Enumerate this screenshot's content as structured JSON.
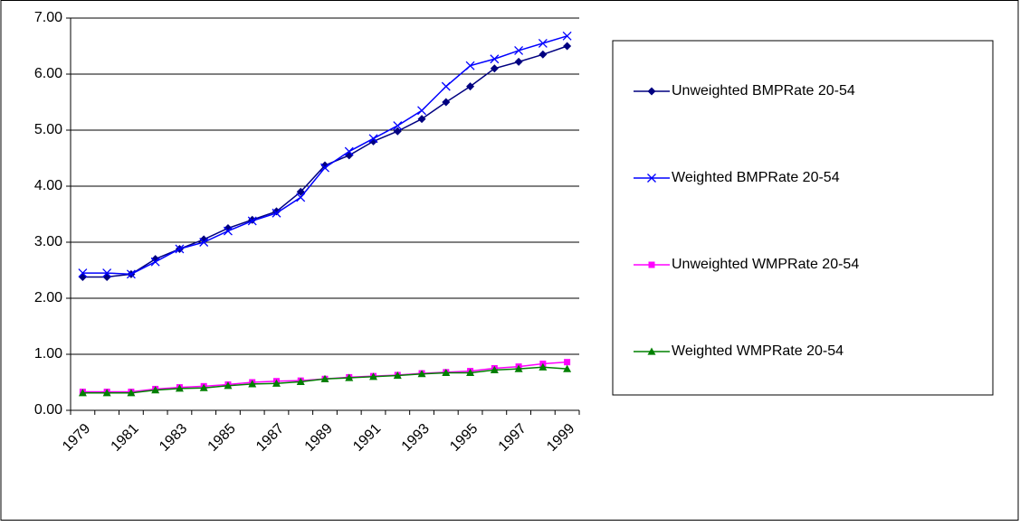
{
  "chart_data": {
    "type": "line",
    "categories": [
      "1979",
      null,
      "1981",
      null,
      "1983",
      null,
      "1985",
      null,
      "1987",
      null,
      "1989",
      null,
      "1991",
      null,
      "1993",
      null,
      "1995",
      null,
      "1997",
      null,
      "1999"
    ],
    "series": [
      {
        "name": "Unweighted BMPRate 20-54",
        "color": "#000080",
        "marker": "diamond",
        "values": [
          2.38,
          2.38,
          2.43,
          2.7,
          2.88,
          3.05,
          3.25,
          3.4,
          3.55,
          3.9,
          4.37,
          4.55,
          4.8,
          4.98,
          5.2,
          5.5,
          5.78,
          6.1,
          6.22,
          6.35,
          6.5
        ]
      },
      {
        "name": "Weighted BMPRate 20-54",
        "color": "#0000ff",
        "marker": "cross",
        "values": [
          2.45,
          2.45,
          2.43,
          2.65,
          2.88,
          3.0,
          3.2,
          3.38,
          3.52,
          3.8,
          4.33,
          4.62,
          4.85,
          5.08,
          5.35,
          5.78,
          6.15,
          6.27,
          6.42,
          6.55,
          6.68
        ]
      },
      {
        "name": "Unweighted WMPRate 20-54",
        "color": "#ff00ff",
        "marker": "square",
        "values": [
          0.33,
          0.33,
          0.33,
          0.38,
          0.41,
          0.43,
          0.46,
          0.5,
          0.52,
          0.53,
          0.56,
          0.59,
          0.61,
          0.63,
          0.66,
          0.68,
          0.7,
          0.75,
          0.78,
          0.83,
          0.86
        ]
      },
      {
        "name": "Weighted WMPRate 20-54",
        "color": "#008000",
        "marker": "triangle",
        "values": [
          0.31,
          0.31,
          0.31,
          0.36,
          0.39,
          0.4,
          0.44,
          0.47,
          0.48,
          0.51,
          0.56,
          0.58,
          0.6,
          0.62,
          0.65,
          0.67,
          0.67,
          0.72,
          0.74,
          0.77,
          0.74
        ]
      }
    ],
    "ylim": [
      0,
      7
    ],
    "yticks": [
      {
        "value": 0,
        "label": "0.00"
      },
      {
        "value": 1,
        "label": "1.00"
      },
      {
        "value": 2,
        "label": "2.00"
      },
      {
        "value": 3,
        "label": "3.00"
      },
      {
        "value": 4,
        "label": "4.00"
      },
      {
        "value": 5,
        "label": "5.00"
      },
      {
        "value": 6,
        "label": "6.00"
      },
      {
        "value": 7,
        "label": "7.00"
      }
    ],
    "grid": true,
    "legend": "right"
  }
}
